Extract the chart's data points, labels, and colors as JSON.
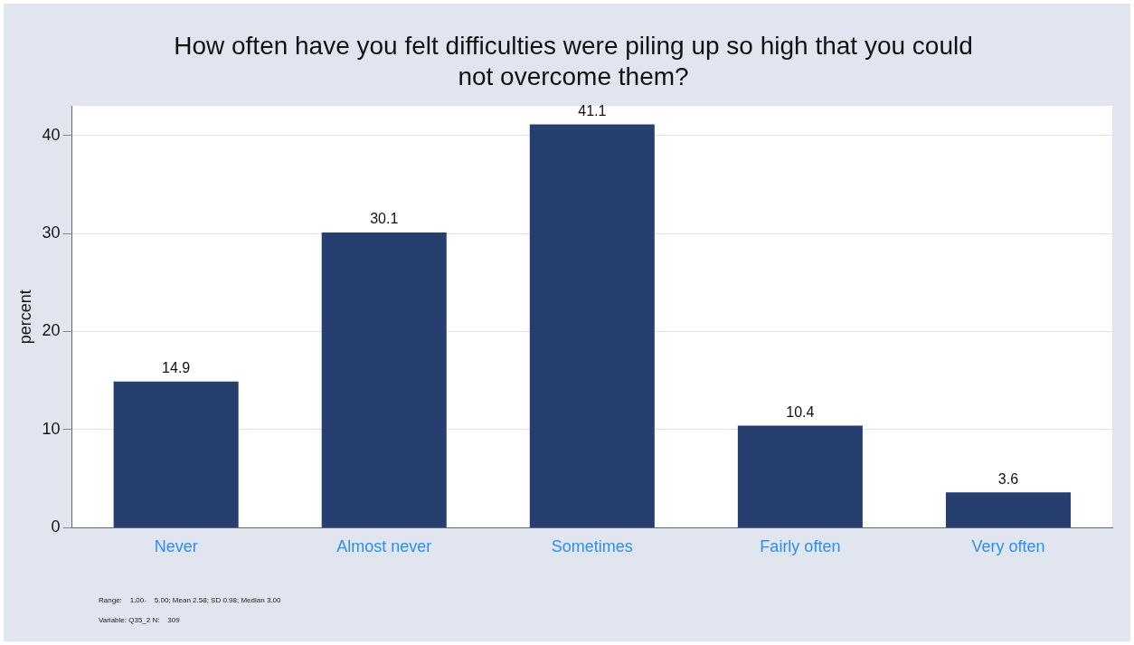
{
  "chart_data": {
    "type": "bar",
    "title": "How often have you felt difficulties were piling up so high that you could not overcome them?",
    "ylabel": "percent",
    "categories": [
      "Never",
      "Almost never",
      "Sometimes",
      "Fairly often",
      "Very often"
    ],
    "values": [
      14.9,
      30.1,
      41.1,
      10.4,
      3.6
    ],
    "color": "#263f6e",
    "ylim": [
      0,
      43
    ],
    "yticks": [
      0,
      10,
      20,
      30,
      40
    ],
    "grid": "y",
    "data_labels": true,
    "legend": false,
    "annotations": [
      "Range:    1.00-    5.00; Mean 2.58; SD 0.98; Median 3.00",
      "Variable: Q35_2 N:    309"
    ]
  }
}
